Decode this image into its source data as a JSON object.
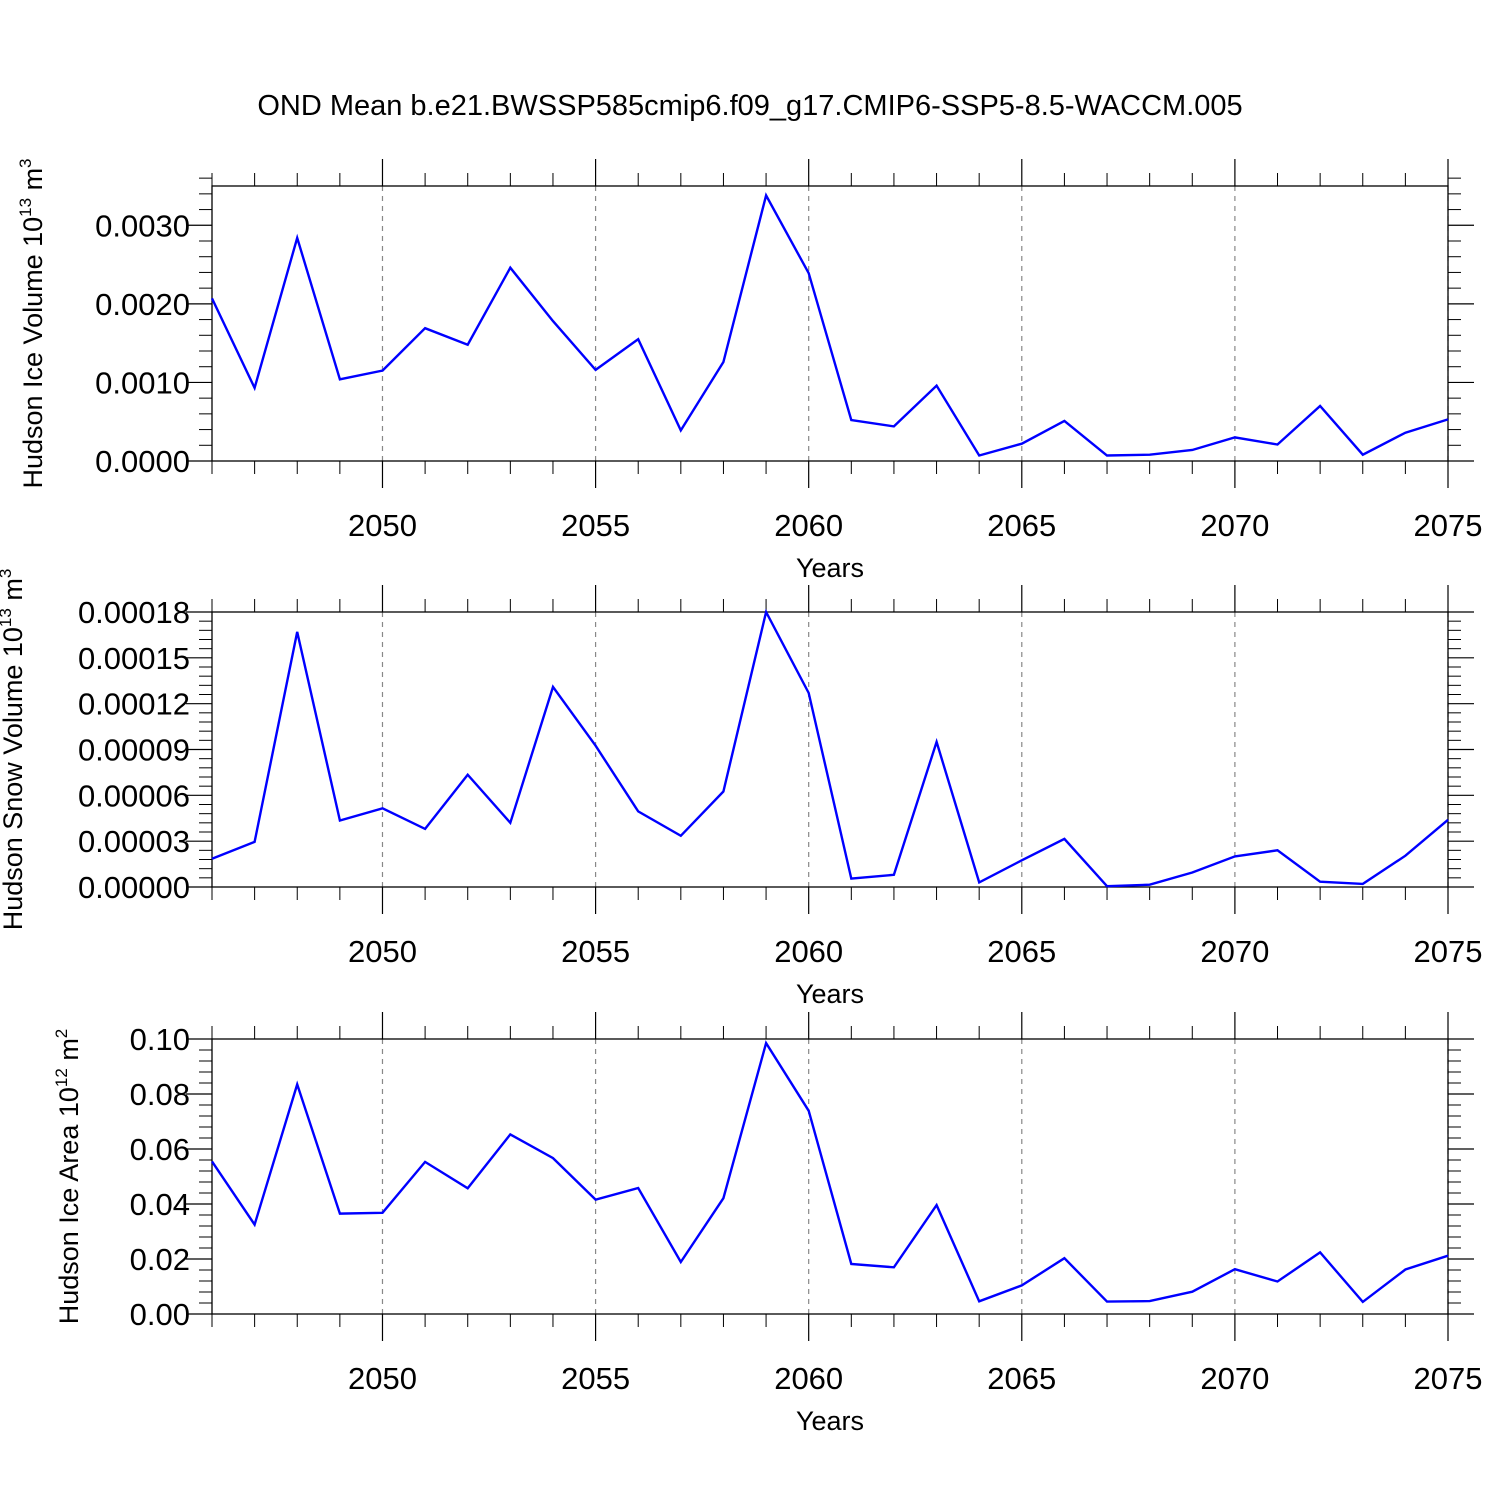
{
  "title": "OND Mean b.e21.BWSSP585cmip6.f09_g17.CMIP6-SSP5-8.5-WACCM.005",
  "colors": {
    "line": "#0000ff",
    "axis": "#000000",
    "grid": "#888888"
  },
  "chart_data": [
    {
      "type": "line",
      "xlabel": "Years",
      "ylabel": {
        "text": "Hudson Ice Volume 10",
        "exponent": "13",
        "unit": " m",
        "unit_power": "3"
      },
      "xlim": [
        2046,
        2075
      ],
      "ylim": [
        0,
        0.0035
      ],
      "xticks": [
        2050,
        2055,
        2060,
        2065,
        2070,
        2075
      ],
      "xtick_labels": [
        "2050",
        "2055",
        "2060",
        "2065",
        "2070",
        "2075"
      ],
      "yticks": [
        0,
        0.001,
        0.002,
        0.003
      ],
      "ytick_labels": [
        "0.0000",
        "0.0010",
        "0.0020",
        "0.0030"
      ],
      "grid": "vertical dashed at major x ticks",
      "x": [
        2046,
        2047,
        2048,
        2049,
        2050,
        2051,
        2052,
        2053,
        2054,
        2055,
        2056,
        2057,
        2058,
        2059,
        2060,
        2061,
        2062,
        2063,
        2064,
        2065,
        2066,
        2067,
        2068,
        2069,
        2070,
        2071,
        2072,
        2073,
        2074,
        2075
      ],
      "series": [
        {
          "values": [
            0.00207,
            0.00093,
            0.00284,
            0.00104,
            0.00115,
            0.00169,
            0.00148,
            0.00246,
            0.00178,
            0.00116,
            0.00155,
            0.00039,
            0.00126,
            0.00338,
            0.00239,
            0.00052,
            0.00044,
            0.00096,
            7e-05,
            0.00022,
            0.00051,
            7e-05,
            8e-05,
            0.00014,
            0.0003,
            0.00021,
            0.0007,
            8e-05,
            0.00036,
            0.00053
          ]
        }
      ]
    },
    {
      "type": "line",
      "xlabel": "Years",
      "ylabel": {
        "text": "Hudson Snow Volume 10",
        "exponent": "13",
        "unit": " m",
        "unit_power": "3"
      },
      "xlim": [
        2046,
        2075
      ],
      "ylim": [
        0,
        0.00018
      ],
      "xticks": [
        2050,
        2055,
        2060,
        2065,
        2070,
        2075
      ],
      "xtick_labels": [
        "2050",
        "2055",
        "2060",
        "2065",
        "2070",
        "2075"
      ],
      "yticks": [
        0,
        3e-05,
        6e-05,
        9e-05,
        0.00012,
        0.00015,
        0.00018
      ],
      "ytick_labels": [
        "0.00000",
        "0.00003",
        "0.00006",
        "0.00009",
        "0.00012",
        "0.00015",
        "0.00018"
      ],
      "grid": "vertical dashed at major x ticks",
      "x": [
        2046,
        2047,
        2048,
        2049,
        2050,
        2051,
        2052,
        2053,
        2054,
        2055,
        2056,
        2057,
        2058,
        2059,
        2060,
        2061,
        2062,
        2063,
        2064,
        2065,
        2066,
        2067,
        2068,
        2069,
        2070,
        2071,
        2072,
        2073,
        2074,
        2075
      ],
      "series": [
        {
          "values": [
            1.85e-05,
            2.95e-05,
            0.000167,
            4.35e-05,
            5.15e-05,
            3.8e-05,
            7.35e-05,
            4.2e-05,
            0.000131,
            9.25e-05,
            4.95e-05,
            3.35e-05,
            6.25e-05,
            0.00018,
            0.000127,
            5.5e-06,
            8e-06,
            9.5e-05,
            3e-06,
            1.75e-05,
            3.15e-05,
            5e-07,
            1.5e-06,
            9.5e-06,
            2e-05,
            2.4e-05,
            3.5e-06,
            2e-06,
            2.05e-05,
            4.4e-05
          ]
        }
      ]
    },
    {
      "type": "line",
      "xlabel": "Years",
      "ylabel": {
        "text": "Hudson Ice Area 10",
        "exponent": "12",
        "unit": " m",
        "unit_power": "2"
      },
      "xlim": [
        2046,
        2075
      ],
      "ylim": [
        0,
        0.1
      ],
      "xticks": [
        2050,
        2055,
        2060,
        2065,
        2070,
        2075
      ],
      "xtick_labels": [
        "2050",
        "2055",
        "2060",
        "2065",
        "2070",
        "2075"
      ],
      "yticks": [
        0,
        0.02,
        0.04,
        0.06,
        0.08,
        0.1
      ],
      "ytick_labels": [
        "0.00",
        "0.02",
        "0.04",
        "0.06",
        "0.08",
        "0.10"
      ],
      "grid": "vertical dashed at major x ticks",
      "x": [
        2046,
        2047,
        2048,
        2049,
        2050,
        2051,
        2052,
        2053,
        2054,
        2055,
        2056,
        2057,
        2058,
        2059,
        2060,
        2061,
        2062,
        2063,
        2064,
        2065,
        2066,
        2067,
        2068,
        2069,
        2070,
        2071,
        2072,
        2073,
        2074,
        2075
      ],
      "series": [
        {
          "values": [
            0.0555,
            0.0325,
            0.0835,
            0.0365,
            0.0368,
            0.0553,
            0.0457,
            0.0653,
            0.0567,
            0.0416,
            0.0458,
            0.0189,
            0.0421,
            0.0985,
            0.0739,
            0.0182,
            0.017,
            0.0396,
            0.0046,
            0.0104,
            0.0203,
            0.0045,
            0.0047,
            0.0081,
            0.0163,
            0.0118,
            0.0224,
            0.0044,
            0.0162,
            0.0212
          ]
        }
      ]
    }
  ]
}
